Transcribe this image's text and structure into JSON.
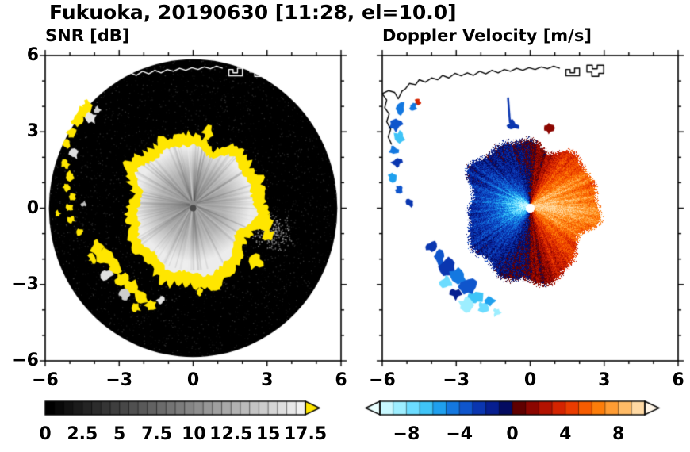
{
  "figure": {
    "title": "Fukuoka, 20190630 [11:28, el=10.0]",
    "background_color": "#ffffff",
    "text_color": "#000000"
  },
  "chart_data": [
    {
      "type": "heatmap",
      "id": "snr",
      "title": "SNR [dB]",
      "xlabel": "",
      "ylabel": "",
      "xlim": [
        -6,
        6
      ],
      "ylim": [
        -6,
        6
      ],
      "xtick_labels": [
        "−6",
        "−3",
        "0",
        "3",
        "6"
      ],
      "xtick_values": [
        -6,
        -3,
        0,
        3,
        6
      ],
      "ytick_labels": [
        "6",
        "3",
        "0",
        "−3",
        "−6"
      ],
      "ytick_values": [
        6,
        3,
        0,
        -3,
        -6
      ],
      "minor_tick_step": 1,
      "grid": false,
      "description": "Radar PPI of signal-to-noise ratio: black receiver-noise disk to ~5.85 km, gray precipitation echo of ~2.3 km radius around the radar rimmed by an irregular saturated yellow (>17.5 dB) ring, yellow ground-clutter patches to the west/southwest, white coastline across the north.",
      "colorbar": {
        "range": [
          0,
          17.5
        ],
        "tick_labels": [
          "0",
          "2.5",
          "5",
          "7.5",
          "10",
          "12.5",
          "15",
          "17.5"
        ],
        "tick_values": [
          0,
          2.5,
          5,
          7.5,
          10,
          12.5,
          15,
          17.5
        ],
        "n_steps": 28,
        "start_color": "#000000",
        "end_color": "#f0f0f0",
        "over_color": "#ffe600"
      },
      "features": {
        "noise_disk": {
          "cx": 0,
          "cy": 0,
          "r": 5.85,
          "color": "#000000"
        },
        "echo_blob": {
          "cx": 0,
          "cy": 0.15,
          "r": 2.32,
          "inner_color": "#8a8a8a",
          "outer_color": "#ececec"
        },
        "saturation_ring": {
          "cx": 0,
          "cy": 0.15,
          "r": 2.78,
          "color": "#ffe600"
        },
        "center_dot": {
          "cx": 0,
          "cy": 0,
          "r": 0.13,
          "color": "#4a4a4a"
        },
        "gray_spray": {
          "cx": 3.2,
          "cy": -0.95,
          "rx": 0.55,
          "ry": 0.5
        },
        "ring_bumps": [
          [
            2.95,
            -0.5,
            0.3
          ],
          [
            3.05,
            -1.05,
            0.24
          ],
          [
            2.55,
            -2.1,
            0.28
          ],
          [
            0.6,
            2.98,
            0.22
          ],
          [
            0.25,
            -3.3,
            0.15
          ],
          [
            0.95,
            -3.12,
            0.13
          ]
        ],
        "patch_format": [
          "x_km",
          "y_km",
          "radius_km",
          "color"
        ],
        "clutter_patches": [
          [
            -4.45,
            3.75,
            0.28,
            "#ffe600"
          ],
          [
            -4.12,
            3.55,
            0.2,
            "#e6e6e6"
          ],
          [
            -4.7,
            3.42,
            0.2,
            "#ffe600"
          ],
          [
            -4.3,
            4.05,
            0.17,
            "#ffe600"
          ],
          [
            -3.88,
            3.85,
            0.13,
            "#cfcfcf"
          ],
          [
            -4.95,
            2.95,
            0.2,
            "#ffe600"
          ],
          [
            -5.1,
            2.5,
            0.16,
            "#ffe600"
          ],
          [
            -4.82,
            2.12,
            0.17,
            "#dedede"
          ],
          [
            -5.18,
            1.72,
            0.15,
            "#ffe600"
          ],
          [
            -5.0,
            1.28,
            0.17,
            "#ffe600"
          ],
          [
            -5.14,
            0.82,
            0.14,
            "#ffe600"
          ],
          [
            -4.9,
            0.46,
            0.12,
            "#ffe600"
          ],
          [
            -5.04,
            0.02,
            0.15,
            "#ffe600"
          ],
          [
            -4.94,
            -0.44,
            0.13,
            "#ffe600"
          ],
          [
            -5.5,
            -0.2,
            0.11,
            "#ffe600"
          ],
          [
            -4.42,
            0.16,
            0.11,
            "#bdbdbd"
          ],
          [
            -4.6,
            -0.92,
            0.14,
            "#ffe600"
          ],
          [
            -4.08,
            -1.98,
            0.17,
            "#ffe600"
          ],
          [
            -3.9,
            -1.52,
            0.24,
            "#ffe600"
          ],
          [
            -3.62,
            -1.92,
            0.29,
            "#ffe600"
          ],
          [
            -3.22,
            -2.3,
            0.27,
            "#ffe600"
          ],
          [
            -3.5,
            -2.62,
            0.2,
            "#e0e0e0"
          ],
          [
            -2.92,
            -2.82,
            0.29,
            "#ffe600"
          ],
          [
            -2.52,
            -3.1,
            0.25,
            "#ffe600"
          ],
          [
            -2.8,
            -3.42,
            0.19,
            "#cccccc"
          ],
          [
            -2.12,
            -3.52,
            0.27,
            "#ffe600"
          ],
          [
            -1.72,
            -3.82,
            0.21,
            "#ffe600"
          ],
          [
            -2.32,
            -3.92,
            0.17,
            "#ffe600"
          ],
          [
            -1.32,
            -3.62,
            0.14,
            "#e3e3e3"
          ]
        ],
        "coastline_color": "#ffffff"
      }
    },
    {
      "type": "heatmap",
      "id": "velocity",
      "title": "Doppler Velocity [m/s]",
      "xlabel": "",
      "ylabel": "",
      "xlim": [
        -6,
        6
      ],
      "ylim": [
        -6,
        6
      ],
      "xtick_labels": [
        "−6",
        "−3",
        "0",
        "3",
        "6"
      ],
      "xtick_values": [
        -6,
        -3,
        0,
        3,
        6
      ],
      "ytick_labels": [],
      "ytick_values": [
        6,
        3,
        0,
        -3,
        -6
      ],
      "minor_tick_step": 1,
      "grid": false,
      "description": "Radar PPI of Doppler velocity: dipole echo of ~2.6 km radius, negative (blue, toward radar) in the west half and positive (red-orange, away) in the east half, near-zero dark colors along the north-south line, white data-void center dot, scattered blue clutter echoes to the west/southwest, black coastline across the north.",
      "colorbar": {
        "range": [
          -10,
          10
        ],
        "tick_labels": [
          "−8",
          "−4",
          "0",
          "4",
          "8"
        ],
        "tick_values": [
          -8,
          -4,
          0,
          4,
          8
        ],
        "colors": [
          "#c8f8ff",
          "#9deeff",
          "#6cdcff",
          "#3fc4f7",
          "#1fa0ee",
          "#1478e0",
          "#0f55cc",
          "#0a36b0",
          "#071f90",
          "#040b60",
          "#600000",
          "#8c0600",
          "#b31200",
          "#d42400",
          "#ea3c00",
          "#f75c00",
          "#fd7d0a",
          "#ff9c33",
          "#ffbb66",
          "#ffd9a3"
        ],
        "under_color": "#eaffff",
        "over_color": "#fff6e8"
      },
      "features": {
        "dipole_echo": {
          "cx": 0,
          "cy": 0.1,
          "r": 2.6,
          "max_velocity_ms": 8.5
        },
        "center_dot": {
          "cx": 0,
          "cy": 0,
          "r": 0.18,
          "color": "#ffffff"
        },
        "streak": {
          "x1": -0.9,
          "y1": 4.35,
          "x2": -0.82,
          "y2": 3.35,
          "color": "#0a36b0"
        },
        "patch_format": [
          "x_km",
          "y_km",
          "radius_km",
          "color"
        ],
        "patches": [
          [
            -5.25,
            3.9,
            0.22,
            "#1478e0"
          ],
          [
            -5.45,
            3.3,
            0.25,
            "#0f55cc"
          ],
          [
            -5.3,
            2.82,
            0.2,
            "#3fc4f7"
          ],
          [
            -5.55,
            2.3,
            0.18,
            "#1478e0"
          ],
          [
            -5.4,
            1.8,
            0.2,
            "#0a36b0"
          ],
          [
            -5.6,
            1.2,
            0.15,
            "#1fa0ee"
          ],
          [
            -5.35,
            0.72,
            0.14,
            "#0f55cc"
          ],
          [
            -4.92,
            0.2,
            0.15,
            "#0a36b0"
          ],
          [
            -4.55,
            4.18,
            0.11,
            "#d42400"
          ],
          [
            -4.75,
            4.0,
            0.14,
            "#1478e0"
          ],
          [
            -4.0,
            -1.52,
            0.2,
            "#0a36b0"
          ],
          [
            -3.7,
            -1.9,
            0.3,
            "#0f55cc"
          ],
          [
            -3.32,
            -2.3,
            0.33,
            "#0a36b0"
          ],
          [
            -3.42,
            -2.9,
            0.22,
            "#6cdcff"
          ],
          [
            -2.92,
            -2.7,
            0.3,
            "#1478e0"
          ],
          [
            -2.52,
            -3.1,
            0.3,
            "#0f55cc"
          ],
          [
            -2.22,
            -3.52,
            0.28,
            "#3fc4f7"
          ],
          [
            -2.62,
            -3.82,
            0.25,
            "#9deeff"
          ],
          [
            -1.92,
            -3.9,
            0.2,
            "#6cdcff"
          ],
          [
            -1.62,
            -3.62,
            0.18,
            "#1fa0ee"
          ],
          [
            -3.02,
            -3.4,
            0.2,
            "#071f90"
          ],
          [
            -1.35,
            -4.1,
            0.15,
            "#9deeff"
          ],
          [
            0.75,
            3.15,
            0.2,
            "#8c0600"
          ],
          [
            -0.7,
            3.25,
            0.2,
            "#0a36b0"
          ]
        ],
        "coastline_color": "#000000"
      }
    }
  ],
  "coastlines": [
    {
      "name": "coast-main",
      "closed": false,
      "points": [
        [
          -6.0,
          4.5
        ],
        [
          -5.75,
          4.62
        ],
        [
          -5.5,
          4.55
        ],
        [
          -5.35,
          4.3
        ],
        [
          -5.2,
          4.6
        ],
        [
          -5.05,
          4.7
        ],
        [
          -4.9,
          4.9
        ],
        [
          -4.65,
          4.85
        ],
        [
          -4.5,
          5.05
        ],
        [
          -4.25,
          4.95
        ],
        [
          -4.0,
          5.12
        ],
        [
          -3.75,
          5.05
        ],
        [
          -3.55,
          5.22
        ],
        [
          -3.3,
          5.12
        ],
        [
          -3.05,
          5.3
        ],
        [
          -2.8,
          5.2
        ],
        [
          -2.55,
          5.32
        ],
        [
          -2.3,
          5.22
        ],
        [
          -2.05,
          5.38
        ],
        [
          -1.8,
          5.28
        ],
        [
          -1.55,
          5.42
        ],
        [
          -1.3,
          5.32
        ],
        [
          -1.05,
          5.45
        ],
        [
          -0.8,
          5.38
        ],
        [
          -0.55,
          5.5
        ],
        [
          -0.3,
          5.42
        ],
        [
          -0.05,
          5.52
        ],
        [
          0.2,
          5.45
        ],
        [
          0.45,
          5.55
        ],
        [
          0.7,
          5.48
        ],
        [
          0.95,
          5.58
        ],
        [
          1.2,
          5.5
        ]
      ]
    },
    {
      "name": "coast-west-branch",
      "closed": false,
      "points": [
        [
          -6.0,
          4.5
        ],
        [
          -5.82,
          4.25
        ],
        [
          -5.9,
          3.95
        ],
        [
          -5.72,
          3.7
        ],
        [
          -5.82,
          3.4
        ],
        [
          -5.66,
          3.1
        ],
        [
          -5.76,
          2.8
        ],
        [
          -5.62,
          2.5
        ]
      ]
    },
    {
      "name": "harbor-structure-1",
      "closed": true,
      "points": [
        [
          1.45,
          5.2
        ],
        [
          1.45,
          5.45
        ],
        [
          1.62,
          5.45
        ],
        [
          1.62,
          5.32
        ],
        [
          1.8,
          5.32
        ],
        [
          1.8,
          5.5
        ],
        [
          2.0,
          5.5
        ],
        [
          2.0,
          5.2
        ]
      ]
    },
    {
      "name": "harbor-structure-2",
      "closed": true,
      "points": [
        [
          2.3,
          5.35
        ],
        [
          2.3,
          5.62
        ],
        [
          2.52,
          5.62
        ],
        [
          2.52,
          5.48
        ],
        [
          2.72,
          5.48
        ],
        [
          2.72,
          5.62
        ],
        [
          2.98,
          5.62
        ],
        [
          2.98,
          5.3
        ],
        [
          2.78,
          5.3
        ],
        [
          2.78,
          5.18
        ],
        [
          2.5,
          5.18
        ],
        [
          2.5,
          5.35
        ]
      ]
    }
  ]
}
